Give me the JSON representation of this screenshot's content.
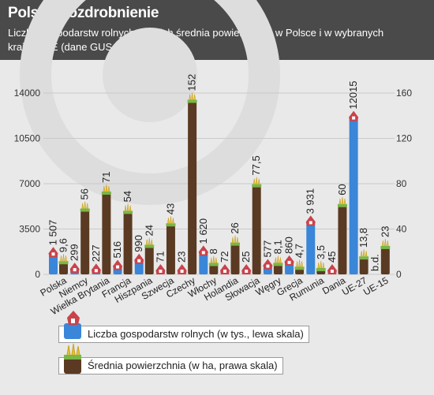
{
  "header": {
    "title": "Polskie rozdrobnienie",
    "subtitle": "Liczba gospodarstw rolnych oraz ich średnia powierzchnia w Polsce i w wybranych krajach UE (dane GUS za 2010 r.)"
  },
  "chart_data": {
    "type": "bar",
    "categories": [
      "Polska",
      "Niemcy",
      "Wielka Brytania",
      "Francja",
      "Hiszpania",
      "Szwecja",
      "Czechy",
      "Włochy",
      "Holandia",
      "Słowacja",
      "Węgry",
      "Grecja",
      "Rumunia",
      "Dania",
      "UE-27",
      "UE-15"
    ],
    "series": [
      {
        "name": "Liczba gospodarstw rolnych (w tys., lewa skala)",
        "axis": "left",
        "color": "#3a86d8",
        "values": [
          1507,
          299,
          227,
          516,
          990,
          71,
          23,
          1620,
          72,
          25,
          577,
          860,
          3931,
          45,
          12015,
          null
        ],
        "labels": [
          "1 507",
          "299",
          "227",
          "516",
          "990",
          "71",
          "23",
          "1 620",
          "72",
          "25",
          "577",
          "860",
          "3 931",
          "45",
          "12015",
          ""
        ]
      },
      {
        "name": "Średnia powierzchnia (w ha, prawa skala)",
        "axis": "right",
        "color": "#5a3a22",
        "values": [
          9.6,
          56,
          71,
          54,
          24,
          43,
          152,
          8,
          26,
          77.5,
          8.1,
          4.7,
          3.5,
          60,
          13.8,
          23
        ],
        "labels": [
          "9,6",
          "56",
          "71",
          "54",
          "24",
          "43",
          "152",
          "8",
          "26",
          "77,5",
          "8,1",
          "4,7",
          "3,5",
          "60",
          "13,8",
          "23"
        ]
      }
    ],
    "left_axis": {
      "min": 0,
      "max": 14000,
      "ticks": [
        "0",
        "3500",
        "7000",
        "10500",
        "14000"
      ]
    },
    "right_axis": {
      "min": 0,
      "max": 160,
      "ticks": [
        "0",
        "40",
        "80",
        "120",
        "160"
      ]
    },
    "extra_labels": [
      {
        "category": "UE-15",
        "series": "left",
        "text": "b.d."
      }
    ],
    "grid": true,
    "legend_position": "bottom-left"
  },
  "legend": {
    "farms_label": "Liczba gospodarstw rolnych (w tys., lewa skala)",
    "area_label": "Średnia powierzchnia (w ha, prawa skala)"
  },
  "icons": {
    "farms": "farmhouse-icon",
    "area": "field-icon"
  }
}
